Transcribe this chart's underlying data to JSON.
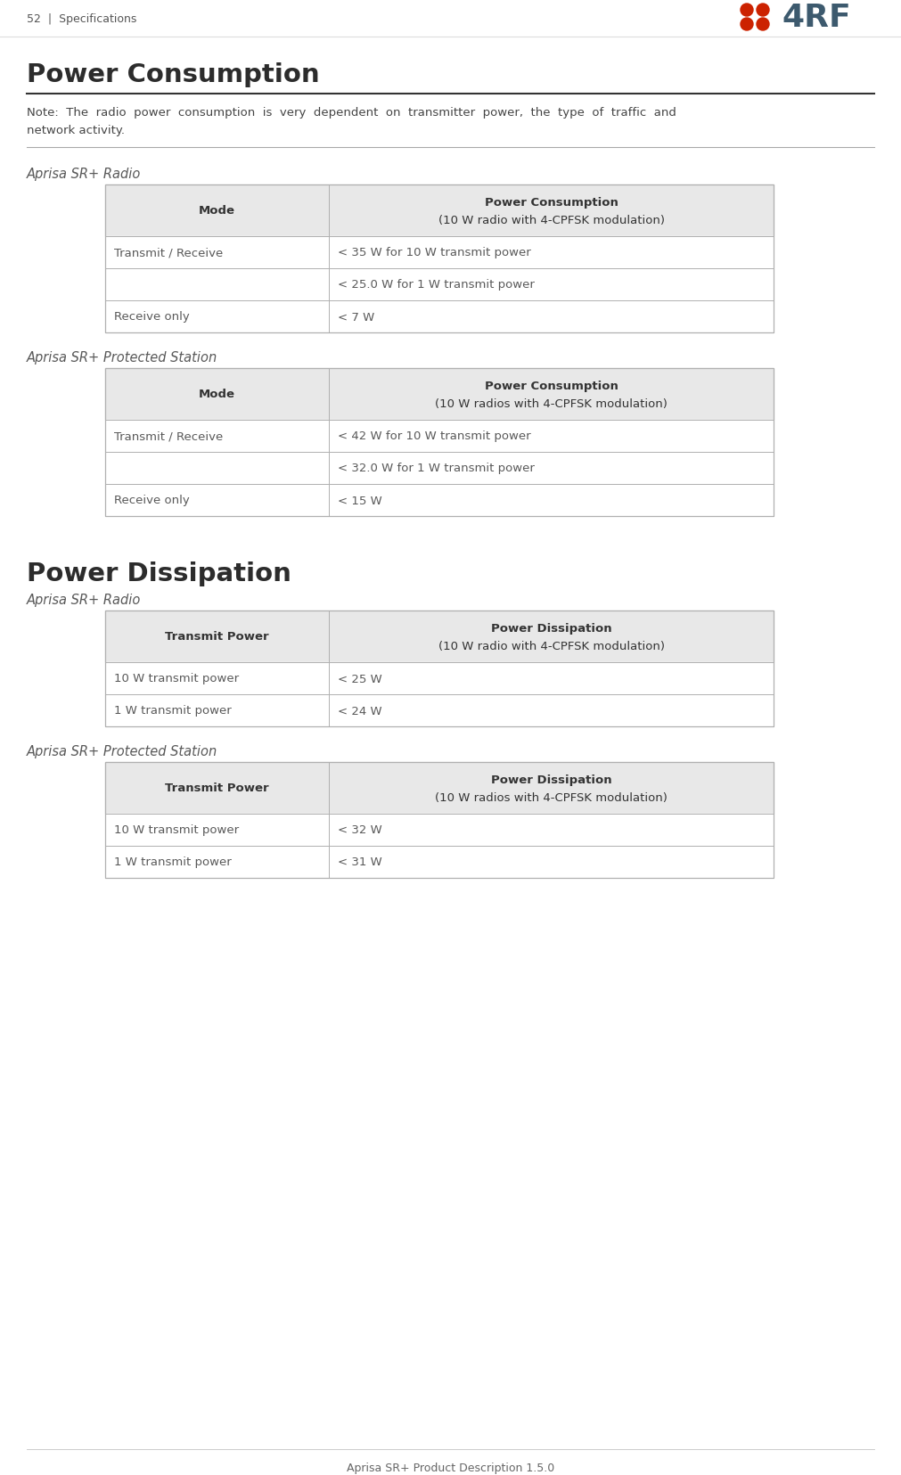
{
  "page_header_left": "52  |  Specifications",
  "page_footer": "Aprisa SR+ Product Description 1.5.0",
  "logo_text": "4RF",
  "section1_title": "Power Consumption",
  "note_line1": "Note:  The  radio  power  consumption  is  very  dependent  on  transmitter  power,  the  type  of  traffic  and",
  "note_line2": "network activity.",
  "subsection1a_title": "Aprisa SR+ Radio",
  "table1a_header": [
    "Mode",
    "Power Consumption",
    "(10 W radio with 4-CPFSK modulation)"
  ],
  "table1a_rows": [
    [
      "Transmit / Receive",
      "< 35 W for 10 W transmit power"
    ],
    [
      "",
      "< 25.0 W for 1 W transmit power"
    ],
    [
      "Receive only",
      "< 7 W"
    ]
  ],
  "subsection1b_title": "Aprisa SR+ Protected Station",
  "table1b_header": [
    "Mode",
    "Power Consumption",
    "(10 W radios with 4-CPFSK modulation)"
  ],
  "table1b_rows": [
    [
      "Transmit / Receive",
      "< 42 W for 10 W transmit power"
    ],
    [
      "",
      "< 32.0 W for 1 W transmit power"
    ],
    [
      "Receive only",
      "< 15 W"
    ]
  ],
  "section2_title": "Power Dissipation",
  "subsection2a_title": "Aprisa SR+ Radio",
  "table2a_header": [
    "Transmit Power",
    "Power Dissipation",
    "(10 W radio with 4-CPFSK modulation)"
  ],
  "table2a_rows": [
    [
      "10 W transmit power",
      "< 25 W"
    ],
    [
      "1 W transmit power",
      "< 24 W"
    ]
  ],
  "subsection2b_title": "Aprisa SR+ Protected Station",
  "table2b_header": [
    "Transmit Power",
    "Power Dissipation",
    "(10 W radios with 4-CPFSK modulation)"
  ],
  "table2b_rows": [
    [
      "10 W transmit power",
      "< 32 W"
    ],
    [
      "1 W transmit power",
      "< 31 W"
    ]
  ],
  "bg_color": "#ffffff",
  "header_bg": "#e8e8e8",
  "table_border_color": "#b0b0b0",
  "text_color": "#595959",
  "section_title_color": "#2c2c2c",
  "subsection_color": "#595959",
  "note_color": "#444444",
  "logo_dot_color": "#cc2200",
  "logo_text_color": "#3d5a6e",
  "rule_color": "#999999",
  "rule_color2": "#cccccc",
  "footer_color": "#666666",
  "header_text_color": "#333333"
}
